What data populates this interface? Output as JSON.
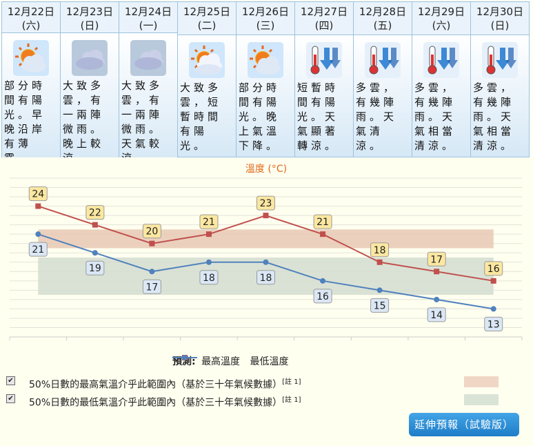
{
  "days": [
    {
      "date": "12月22日",
      "weekday": "(六)",
      "icon": "sunny-periods-icon",
      "desc": "部分時間有陽光。早晚沿岸有薄霧。"
    },
    {
      "date": "12月23日",
      "weekday": "(日)",
      "icon": "cloudy-icon",
      "desc": "大致多雲，有一兩陣微雨。晚上較涼。"
    },
    {
      "date": "12月24日",
      "weekday": "(一)",
      "icon": "cloudy-icon",
      "desc": "大致多雲，有一兩陣微雨。天氣較涼。"
    },
    {
      "date": "12月25日",
      "weekday": "(二)",
      "icon": "sun-cloud-icon",
      "desc": "大致多雲，短暫時間有陽光。"
    },
    {
      "date": "12月26日",
      "weekday": "(三)",
      "icon": "sunny-periods-icon",
      "desc": "部分時間有陽光。晚上氣溫下降。"
    },
    {
      "date": "12月27日",
      "weekday": "(四)",
      "icon": "cold-thermometer-icon",
      "desc": "短暫時間有陽光。天氣顯著轉涼。"
    },
    {
      "date": "12月28日",
      "weekday": "(五)",
      "icon": "cold-thermometer-icon",
      "desc": "多雲，有幾陣雨。天氣清涼。"
    },
    {
      "date": "12月29日",
      "weekday": "(六)",
      "icon": "cold-thermometer-icon",
      "desc": "多雲，有幾陣雨。天氣相當清涼。"
    },
    {
      "date": "12月30日",
      "weekday": "(日)",
      "icon": "cold-thermometer-icon",
      "desc": "多雲，有幾陣雨。天氣相當清涼。"
    }
  ],
  "chart_title": "溫度 (°C)",
  "chart_data": {
    "type": "line",
    "title": "溫度 (°C)",
    "categories": [
      "12月22日",
      "12月23日",
      "12月24日",
      "12月25日",
      "12月26日",
      "12月27日",
      "12月28日",
      "12月29日",
      "12月30日"
    ],
    "series": [
      {
        "name": "最高溫度",
        "color": "#c0504d",
        "values": [
          24,
          22,
          20,
          21,
          23,
          21,
          18,
          17,
          16
        ]
      },
      {
        "name": "最低溫度",
        "color": "#4f81bd",
        "values": [
          21,
          19,
          17,
          18,
          18,
          16,
          15,
          14,
          13
        ]
      }
    ],
    "bands": [
      {
        "color": "#e8c9b4",
        "low": [
          19.5,
          19.5,
          19.5,
          19.5,
          19.5,
          19.5,
          19.5,
          19.5,
          19.5
        ],
        "high": [
          21.5,
          21.5,
          21.5,
          21.5,
          21.5,
          21.5,
          21.5,
          21.5,
          21.5
        ]
      },
      {
        "color": "#d4ddd0",
        "low": [
          14.5,
          14.5,
          14.5,
          14.5,
          14.5,
          14.5,
          14.5,
          14.5,
          14.5
        ],
        "high": [
          18.5,
          18.5,
          18.5,
          18.5,
          18.5,
          18.5,
          18.5,
          18.5,
          18.5
        ]
      }
    ],
    "ylim": [
      10,
      27
    ],
    "grid": true
  },
  "legend": {
    "prefix": "預測:",
    "max_label": "最高溫度",
    "min_label": "最低溫度"
  },
  "notes": [
    {
      "checked": "✔",
      "text": "50%日數的最高氣溫介乎此範圍內（基於三十年氣候數據）",
      "sup": "[註 1]",
      "color": "#f0d6c4"
    },
    {
      "checked": "✔",
      "text": "50%日數的最低氣溫介乎此範圍內（基於三十年氣候數據）",
      "sup": "[註 1]",
      "color": "#d9e4d6"
    }
  ],
  "extended_button": "延伸預報（試驗版）"
}
